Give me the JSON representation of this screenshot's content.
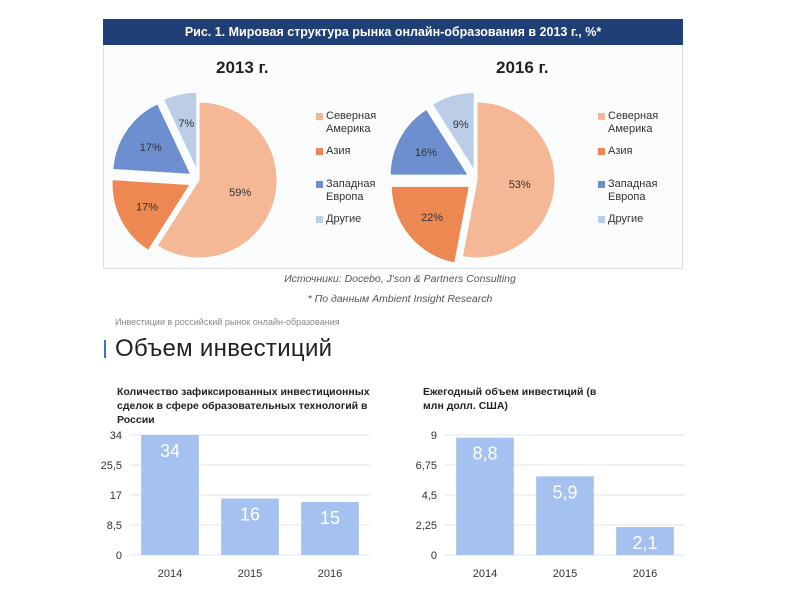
{
  "figure1": {
    "header": "Рис. 1. Мировая структура рынка онлайн-образования в 2013 г., %*",
    "legend": [
      {
        "label": "Северная\nАмерика",
        "color": "#f4b896"
      },
      {
        "label": "Азия",
        "color": "#ee8853"
      },
      {
        "label": "Западная\nЕвропа",
        "color": "#6d8fcf"
      },
      {
        "label": "Другие",
        "color": "#bccde8"
      }
    ]
  },
  "source_note": "Источники: Docebo, J'son & Partners Consulting",
  "footnote": "* По данным Ambient Insight Research",
  "breadcrumb": "Инвестиции в российский рынок онлайн-образования",
  "section_title": "Объем инвестиций",
  "chart_data": [
    {
      "type": "pie",
      "title": "2013 г.",
      "slices": [
        {
          "label": "Северная Америка",
          "value": 59,
          "value_label": "59%",
          "color": "#f4b896"
        },
        {
          "label": "Азия",
          "value": 17,
          "value_label": "17%",
          "color": "#ee8853"
        },
        {
          "label": "Западная Европа",
          "value": 17,
          "value_label": "17%",
          "color": "#6d8fcf"
        },
        {
          "label": "Другие",
          "value": 7,
          "value_label": "7%",
          "color": "#bccde8"
        }
      ]
    },
    {
      "type": "pie",
      "title": "2016 г.",
      "slices": [
        {
          "label": "Северная Америка",
          "value": 53,
          "value_label": "53%",
          "color": "#f4b896"
        },
        {
          "label": "Азия",
          "value": 22,
          "value_label": "22%",
          "color": "#ee8853"
        },
        {
          "label": "Западная Европа",
          "value": 16,
          "value_label": "16%",
          "color": "#6d8fcf"
        },
        {
          "label": "Другие",
          "value": 9,
          "value_label": "9%",
          "color": "#bccde8"
        }
      ]
    },
    {
      "type": "bar",
      "title": "Количество зафиксированных инвестиционных сделок в сфере образовательных технологий в России",
      "categories": [
        "2014",
        "2015",
        "2016"
      ],
      "values": [
        34,
        16,
        15
      ],
      "value_labels": [
        "34",
        "16",
        "15"
      ],
      "yticks": [
        "0",
        "8,5",
        "17",
        "25,5",
        "34"
      ],
      "ylim": [
        0,
        34
      ],
      "grid": true,
      "color": "#a4c1f0"
    },
    {
      "type": "bar",
      "title": "Ежегодный объем инвестиций (в млн долл. США)",
      "categories": [
        "2014",
        "2015",
        "2016"
      ],
      "values": [
        8.8,
        5.9,
        2.1
      ],
      "value_labels": [
        "8,8",
        "5,9",
        "2,1"
      ],
      "yticks": [
        "0",
        "2,25",
        "4,5",
        "6,75",
        "9"
      ],
      "ylim": [
        0,
        9
      ],
      "grid": true,
      "color": "#a4c1f0"
    }
  ]
}
